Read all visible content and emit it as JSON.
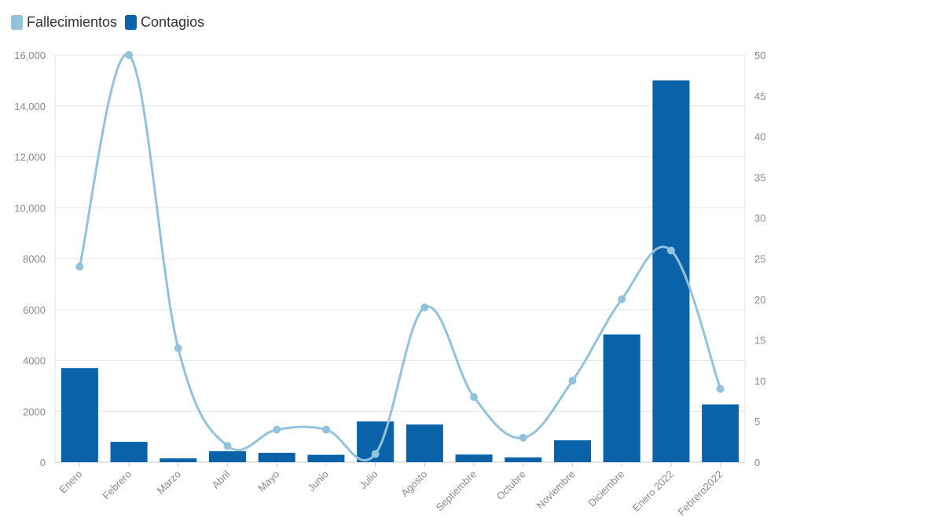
{
  "chart_data": {
    "type": "bar",
    "categories": [
      "Enero",
      "Febrero",
      "Marzo",
      "Abril",
      "Mayo",
      "Junio",
      "Julio",
      "Agosto",
      "Septiembre",
      "Octubre",
      "Noviembre",
      "Diciembre",
      "Enero 2022",
      "Febrero2022"
    ],
    "series": [
      {
        "name": "Contagios",
        "type": "bar",
        "axis": "left",
        "color": "#0a62a8",
        "values": [
          3700,
          800,
          150,
          430,
          370,
          290,
          1600,
          1480,
          300,
          190,
          860,
          5020,
          15000,
          2270
        ]
      },
      {
        "name": "Fallecimientos",
        "type": "line",
        "axis": "right",
        "color": "#93c3dc",
        "values": [
          24,
          50,
          14,
          2,
          4,
          4,
          1,
          19,
          8,
          3,
          10,
          20,
          26,
          9
        ]
      }
    ],
    "legend": [
      {
        "name": "Fallecimientos",
        "color": "#93c3dc"
      },
      {
        "name": "Contagios",
        "color": "#0a62a8"
      }
    ],
    "legend_position": "top-left",
    "ylim_left": [
      0,
      16000
    ],
    "ylim_right": [
      0,
      50
    ],
    "yticks_left": [
      "0",
      "2000",
      "4000",
      "6000",
      "8000",
      "10,000",
      "12,000",
      "14,000",
      "16,000"
    ],
    "yticks_left_values": [
      0,
      2000,
      4000,
      6000,
      8000,
      10000,
      12000,
      14000,
      16000
    ],
    "yticks_right": [
      "0",
      "5",
      "10",
      "15",
      "20",
      "25",
      "30",
      "35",
      "40",
      "45",
      "50"
    ],
    "yticks_right_values": [
      0,
      5,
      10,
      15,
      20,
      25,
      30,
      35,
      40,
      45,
      50
    ],
    "grid": true,
    "title": "",
    "xlabel": "",
    "ylabel": ""
  }
}
